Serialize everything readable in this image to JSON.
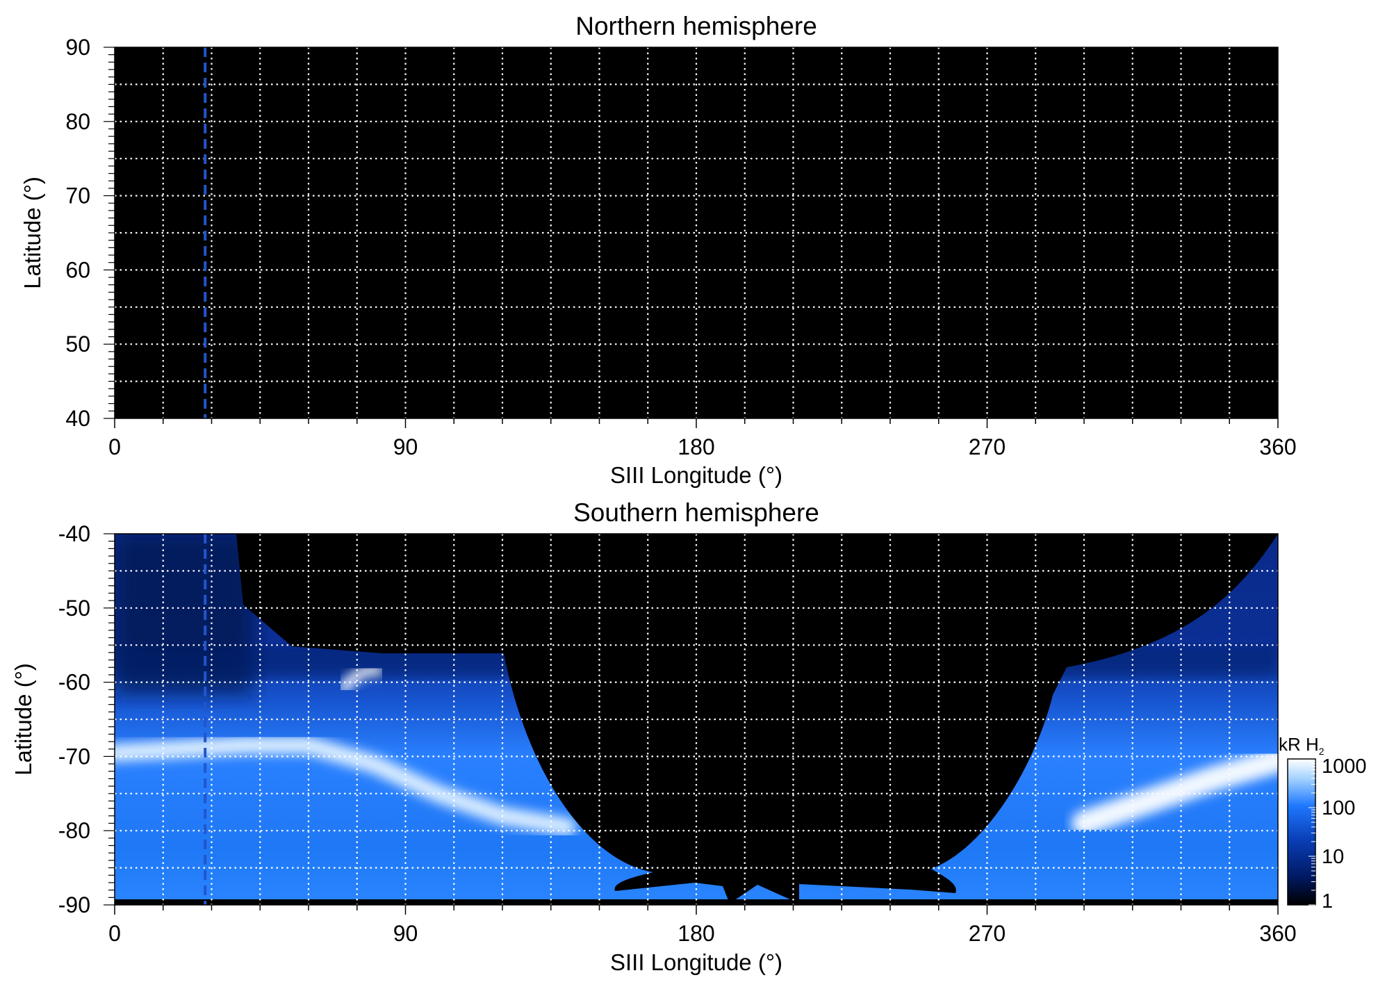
{
  "chart_data": [
    {
      "type": "heatmap",
      "title": "Northern hemisphere",
      "xlabel": "SIII Longitude (°)",
      "ylabel": "Latitude (°)",
      "xlim": [
        0,
        360
      ],
      "ylim": [
        40,
        90
      ],
      "xticks": [
        "0",
        "90",
        "180",
        "270",
        "360"
      ],
      "yticks": [
        "40",
        "50",
        "60",
        "70",
        "80",
        "90"
      ],
      "grid": true,
      "grid_x_step": 15,
      "grid_y_step": 5,
      "marker_longitude": 28,
      "marker_color": "#2255cc",
      "content": "no emission (black)"
    },
    {
      "type": "heatmap",
      "title": "Southern hemisphere",
      "xlabel": "SIII Longitude (°)",
      "ylabel": "Latitude (°)",
      "xlim": [
        0,
        360
      ],
      "ylim": [
        -90,
        -40
      ],
      "xticks": [
        "0",
        "90",
        "180",
        "270",
        "360"
      ],
      "yticks": [
        "-90",
        "-80",
        "-70",
        "-60",
        "-50",
        "-40"
      ],
      "grid": true,
      "grid_x_step": 15,
      "grid_y_step": 5,
      "marker_longitude": 28,
      "marker_color": "#2255cc",
      "colorbar": {
        "unit": "kR H",
        "unit_sub": "2",
        "scale": "log",
        "range": [
          1,
          1000
        ],
        "ticks": [
          "1",
          "10",
          "100",
          "1000"
        ],
        "colors": [
          "#000000",
          "#001a66",
          "#0a3fb8",
          "#1f78ff",
          "#9fd0ff",
          "#ffffff"
        ]
      },
      "auroral_oval": {
        "west_lon": [
          0,
          20,
          40,
          60,
          80,
          100,
          120,
          140
        ],
        "west_lat": [
          -69.5,
          -69,
          -68.5,
          -68.5,
          -71,
          -75,
          -78,
          -79.5
        ],
        "east_lon": [
          300,
          320,
          340,
          360
        ],
        "east_lat": [
          -79,
          -76,
          -73,
          -70.5
        ]
      }
    }
  ]
}
